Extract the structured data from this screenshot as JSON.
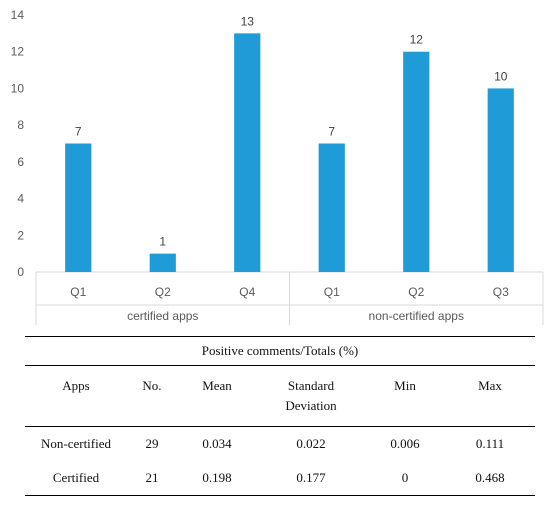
{
  "chart_data": {
    "type": "bar",
    "groups": [
      {
        "name": "certified apps",
        "categories": [
          "Q1",
          "Q2",
          "Q4"
        ],
        "values": [
          7,
          1,
          13
        ]
      },
      {
        "name": "non-certified apps",
        "categories": [
          "Q1",
          "Q2",
          "Q3"
        ],
        "values": [
          7,
          12,
          10
        ]
      }
    ],
    "ylim": [
      0,
      14
    ],
    "yticks": [
      0,
      2,
      4,
      6,
      8,
      10,
      12,
      14
    ],
    "data_labels": true,
    "grid": false,
    "bar_color": "#1f9bd7"
  },
  "table": {
    "caption": "Positive comments/Totals (%)",
    "headers": [
      {
        "line1": "Apps",
        "line2": ""
      },
      {
        "line1": "No.",
        "line2": ""
      },
      {
        "line1": "Mean",
        "line2": ""
      },
      {
        "line1": "Standard",
        "line2": "Deviation"
      },
      {
        "line1": "Min",
        "line2": ""
      },
      {
        "line1": "Max",
        "line2": ""
      }
    ],
    "rows": [
      [
        "Non-certified",
        "29",
        "0.034",
        "0.022",
        "0.006",
        "0.111"
      ],
      [
        "Certified",
        "21",
        "0.198",
        "0.177",
        "0",
        "0.468"
      ]
    ]
  }
}
